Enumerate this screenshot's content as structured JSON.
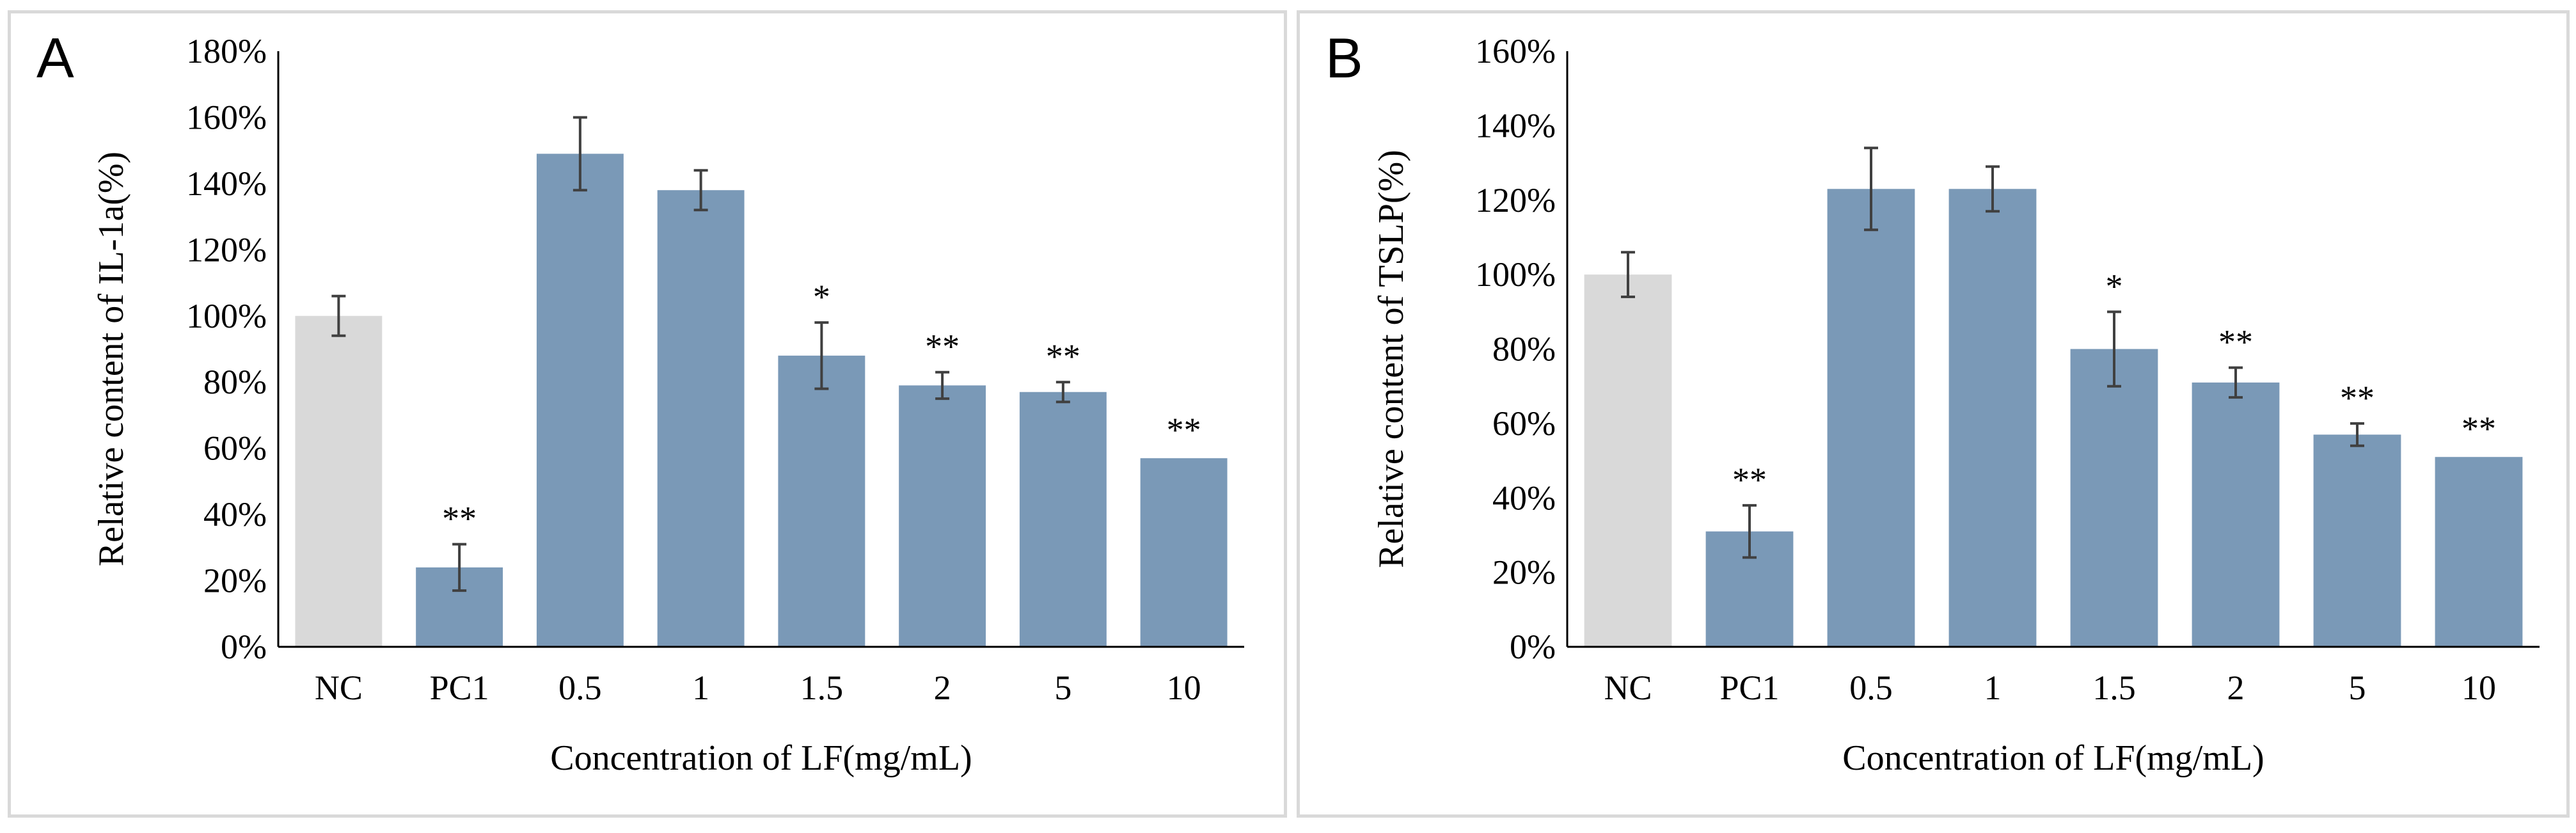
{
  "chart_data": [
    {
      "type": "bar",
      "panel_label": "A",
      "title": "",
      "xlabel": "Concentration of LF(mg/mL)",
      "ylabel": "Relative content of IL-1a(%)",
      "ylim": [
        0,
        180
      ],
      "yticks": [
        "0%",
        "20%",
        "40%",
        "60%",
        "80%",
        "100%",
        "120%",
        "140%",
        "160%",
        "180%"
      ],
      "categories": [
        "NC",
        "PC1",
        "0.5",
        "1",
        "1.5",
        "2",
        "5",
        "10"
      ],
      "values": [
        100,
        24,
        149,
        138,
        88,
        79,
        77,
        57
      ],
      "errors": [
        6,
        7,
        11,
        6,
        10,
        4,
        3,
        0
      ],
      "significance": [
        "",
        "**",
        "",
        "",
        "*",
        "**",
        "**",
        "**"
      ],
      "colors": [
        "#d9d9d9",
        "#7a99b7",
        "#7a99b7",
        "#7a99b7",
        "#7a99b7",
        "#7a99b7",
        "#7a99b7",
        "#7a99b7"
      ],
      "grid": false
    },
    {
      "type": "bar",
      "panel_label": "B",
      "title": "",
      "xlabel": "Concentration of LF(mg/mL)",
      "ylabel": "Relative content of TSLP(%)",
      "ylim": [
        0,
        160
      ],
      "yticks": [
        "0%",
        "20%",
        "40%",
        "60%",
        "80%",
        "100%",
        "120%",
        "140%",
        "160%"
      ],
      "categories": [
        "NC",
        "PC1",
        "0.5",
        "1",
        "1.5",
        "2",
        "5",
        "10"
      ],
      "values": [
        100,
        31,
        123,
        123,
        80,
        71,
        57,
        51
      ],
      "errors": [
        6,
        7,
        11,
        6,
        10,
        4,
        3,
        0
      ],
      "significance": [
        "",
        "**",
        "",
        "",
        "*",
        "**",
        "**",
        "**"
      ],
      "colors": [
        "#d9d9d9",
        "#7a99b7",
        "#7a99b7",
        "#7a99b7",
        "#7a99b7",
        "#7a99b7",
        "#7a99b7",
        "#7a99b7"
      ],
      "grid": false
    }
  ]
}
